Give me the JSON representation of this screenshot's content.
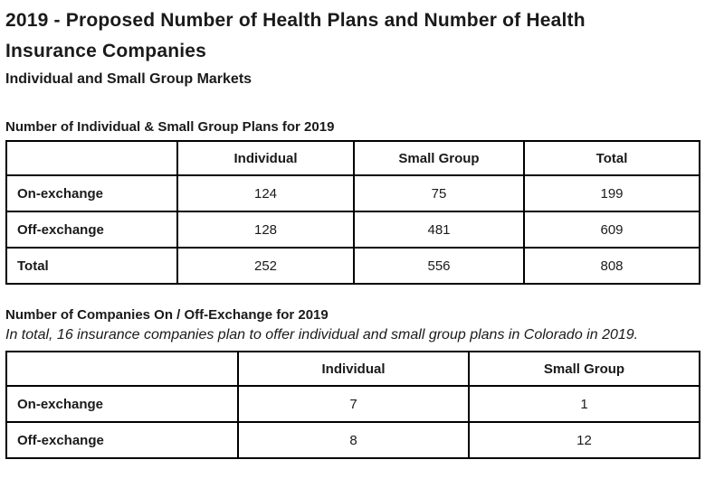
{
  "header": {
    "title": "2019 - Proposed Number of Health Plans and Number of Health Insurance Companies",
    "subtitle": "Individual and Small Group Markets"
  },
  "plans_section": {
    "heading": "Number of Individual & Small Group Plans for 2019",
    "table": {
      "columns": [
        "",
        "Individual",
        "Small Group",
        "Total"
      ],
      "rows": [
        {
          "label": "On-exchange",
          "values": [
            "124",
            "75",
            "199"
          ]
        },
        {
          "label": "Off-exchange",
          "values": [
            "128",
            "481",
            "609"
          ]
        },
        {
          "label": "Total",
          "values": [
            "252",
            "556",
            "808"
          ]
        }
      ]
    }
  },
  "companies_section": {
    "heading": "Number of Companies On / Off-Exchange for 2019",
    "note": "In total, 16 insurance companies plan to offer individual and small group plans in Colorado in 2019.",
    "table": {
      "columns": [
        "",
        "Individual",
        "Small Group"
      ],
      "rows": [
        {
          "label": "On-exchange",
          "values": [
            "7",
            "1"
          ]
        },
        {
          "label": "Off-exchange",
          "values": [
            "8",
            "12"
          ]
        }
      ]
    }
  },
  "colors": {
    "text": "#1a1a1a",
    "border": "#000000",
    "background": "#ffffff"
  }
}
